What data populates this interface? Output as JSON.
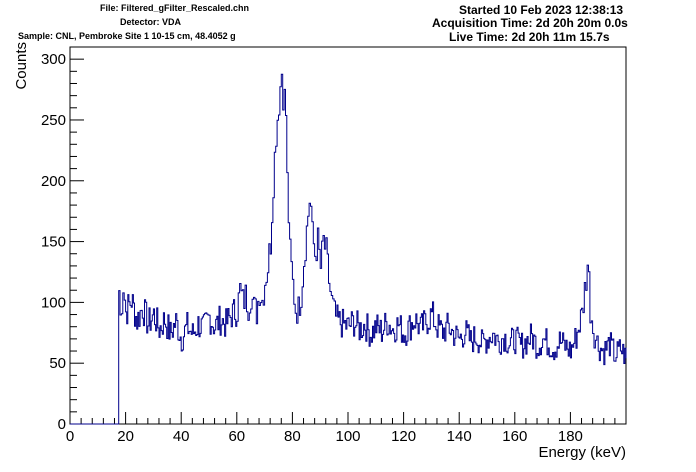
{
  "header": {
    "file": "File: Filtered_gFilter_Rescaled.chn",
    "detector": "Detector: VDA",
    "sample": "Sample: CNL, Pembroke Site 1 10-15 cm, 48.4052 g",
    "started": "Started 10 Feb 2023 12:38:13",
    "acquisition_time": "Acquisition Time: 2d 20h 20m 0.0s",
    "live_time": "Live Time: 2d 20h 11m 15.7s"
  },
  "chart_data": {
    "type": "line",
    "title": "",
    "xlabel": "Energy (keV)",
    "ylabel": "Counts",
    "xlim": [
      0,
      200
    ],
    "ylim": [
      0,
      310
    ],
    "x_ticks": [
      0,
      20,
      40,
      60,
      80,
      100,
      120,
      140,
      160,
      180
    ],
    "x_tick_labels": [
      "0",
      "20",
      "40",
      "60",
      "80",
      "100",
      "120",
      "140",
      "160",
      "180"
    ],
    "y_ticks": [
      0,
      50,
      100,
      150,
      200,
      250,
      300
    ],
    "y_tick_labels": [
      "0",
      "50",
      "100",
      "150",
      "200",
      "250",
      "300"
    ],
    "grid": false,
    "line_color": "#00008b",
    "series": [
      {
        "x": [
          0,
          17.5,
          17.5,
          18,
          19,
          20,
          22,
          24,
          26,
          28,
          30,
          32,
          34,
          36,
          38,
          40,
          42,
          44,
          46,
          48,
          50,
          52,
          54,
          56,
          58,
          60,
          61,
          62,
          63,
          64,
          65,
          66,
          67,
          68,
          69,
          70,
          71,
          72,
          73,
          74,
          75,
          75.5,
          76,
          76.5,
          77,
          77.5,
          78,
          79,
          80,
          81,
          82,
          83,
          84,
          85,
          86,
          86.5,
          87,
          88,
          89,
          90,
          91,
          92,
          93,
          94,
          95,
          96,
          98,
          100,
          102,
          104,
          106,
          108,
          110,
          112,
          114,
          116,
          118,
          120,
          122,
          124,
          126,
          128,
          130,
          132,
          134,
          136,
          138,
          140,
          142,
          144,
          146,
          148,
          150,
          152,
          154,
          156,
          158,
          160,
          162,
          164,
          166,
          168,
          170,
          172,
          174,
          176,
          178,
          180,
          182,
          184,
          185,
          186,
          186.5,
          187,
          188,
          189,
          190,
          192,
          194,
          196,
          198,
          200
        ],
        "y": [
          0,
          0,
          110,
          88,
          115,
          92,
          102,
          85,
          96,
          82,
          90,
          78,
          86,
          74,
          84,
          70,
          80,
          74,
          82,
          78,
          88,
          80,
          86,
          82,
          90,
          94,
          110,
          100,
          105,
          98,
          108,
          95,
          92,
          110,
          102,
          118,
          130,
          150,
          200,
          240,
          265,
          278,
          290,
          272,
          268,
          255,
          200,
          140,
          115,
          95,
          94,
          108,
          135,
          160,
          185,
          178,
          155,
          140,
          150,
          128,
          150,
          140,
          118,
          100,
          90,
          85,
          82,
          80,
          84,
          78,
          82,
          74,
          80,
          76,
          84,
          78,
          82,
          74,
          80,
          86,
          78,
          84,
          90,
          80,
          76,
          80,
          74,
          70,
          76,
          68,
          72,
          66,
          70,
          74,
          68,
          72,
          66,
          70,
          64,
          68,
          72,
          64,
          70,
          66,
          62,
          68,
          64,
          60,
          72,
          90,
          110,
          132,
          118,
          95,
          80,
          70,
          64,
          60,
          66,
          56,
          62,
          54
        ]
      }
    ]
  }
}
